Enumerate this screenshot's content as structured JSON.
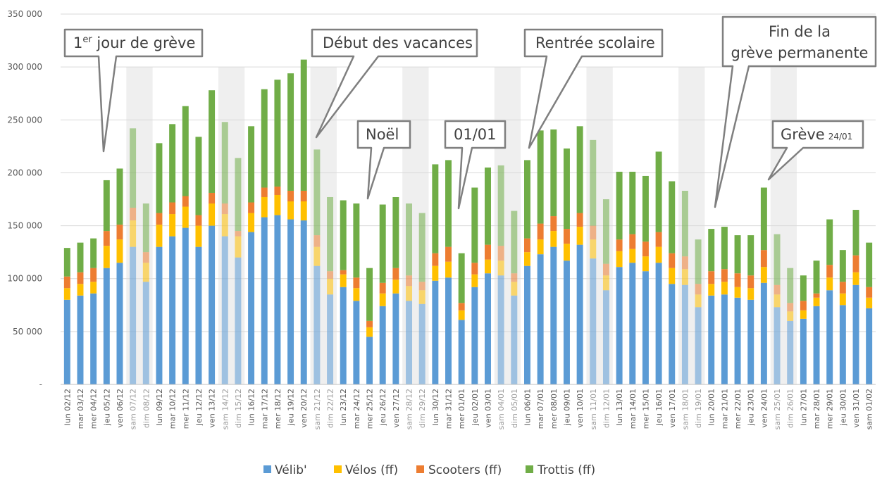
{
  "chart_data": {
    "type": "bar",
    "stacked": true,
    "ylim": [
      0,
      350000
    ],
    "yticks": [
      0,
      50000,
      100000,
      150000,
      200000,
      250000,
      300000,
      350000
    ],
    "ytick_labels": [
      "-",
      "50 000",
      "100 000",
      "150 000",
      "200 000",
      "250 000",
      "300 000",
      "350 000"
    ],
    "grid": true,
    "legend_position": "bottom",
    "categories": [
      "lun 02/12",
      "mar 03/12",
      "mer 04/12",
      "jeu 05/12",
      "ven 06/12",
      "sam 07/12",
      "dim 08/12",
      "lun 09/12",
      "mar 10/12",
      "mer 11/12",
      "jeu 12/12",
      "ven 13/12",
      "sam 14/12",
      "dim 15/12",
      "lun 16/12",
      "mar 17/12",
      "mer 18/12",
      "jeu 19/12",
      "ven 20/12",
      "sam 21/12",
      "dim 22/12",
      "lun 23/12",
      "mar 24/12",
      "mer 25/12",
      "jeu 26/12",
      "ven 27/12",
      "sam 28/12",
      "dim 29/12",
      "lun 30/12",
      "mar 31/12",
      "mer 01/01",
      "jeu 02/01",
      "ven 03/01",
      "sam 04/01",
      "dim 05/01",
      "lun 06/01",
      "mar 07/01",
      "mer 08/01",
      "jeu 09/01",
      "ven 10/01",
      "sam 11/01",
      "dim 12/01",
      "lun 13/01",
      "mar 14/01",
      "mer 15/01",
      "jeu 16/01",
      "ven 17/01",
      "sam 18/01",
      "dim 19/01",
      "lun 20/01",
      "mar 21/01",
      "mer 22/01",
      "jeu 23/01",
      "ven 24/01",
      "sam 25/01",
      "dim 26/01",
      "lun 27/01",
      "mar 28/01",
      "mer 29/01",
      "jeu 30/01",
      "ven 31/01",
      "sam 01/02"
    ],
    "weekend_indices": [
      5,
      6,
      12,
      13,
      19,
      20,
      26,
      27,
      33,
      34,
      40,
      41,
      47,
      48,
      54,
      55
    ],
    "series": [
      {
        "name": "Vélib'",
        "color": "#5b9bd5",
        "values": [
          80000,
          84000,
          86000,
          110000,
          115000,
          130000,
          97000,
          130000,
          140000,
          148000,
          130000,
          150000,
          140000,
          120000,
          144000,
          158000,
          160000,
          156000,
          155000,
          112000,
          85000,
          92000,
          79000,
          45000,
          74000,
          86000,
          79000,
          76000,
          98000,
          101000,
          61000,
          92000,
          105000,
          103000,
          84000,
          112000,
          123000,
          130000,
          117000,
          132000,
          119000,
          89000,
          111000,
          115000,
          107000,
          115000,
          95000,
          94000,
          73000,
          84000,
          85000,
          82000,
          80000,
          96000,
          73000,
          60000,
          62000,
          74000,
          89000,
          75000,
          94000,
          72000
        ]
      },
      {
        "name": "Vélos (ff)",
        "color": "#ffc000",
        "values": [
          11000,
          11000,
          11000,
          21000,
          22000,
          25000,
          18000,
          21000,
          21000,
          20000,
          20000,
          21000,
          21000,
          20000,
          18000,
          19000,
          19000,
          17000,
          18000,
          18000,
          15000,
          12000,
          12000,
          9000,
          12000,
          13000,
          14000,
          13000,
          14000,
          15000,
          9000,
          12000,
          13000,
          14000,
          13000,
          13000,
          14000,
          15000,
          16000,
          17000,
          18000,
          14000,
          15000,
          13000,
          14000,
          15000,
          15000,
          15000,
          12000,
          11000,
          12000,
          10000,
          11000,
          15000,
          12000,
          9000,
          8000,
          8000,
          12000,
          11000,
          12000,
          10000
        ]
      },
      {
        "name": "Scooters (ff)",
        "color": "#ed7d31",
        "values": [
          11000,
          11000,
          13000,
          14000,
          14000,
          12000,
          10000,
          11000,
          11000,
          10000,
          10000,
          10000,
          10000,
          5000,
          10000,
          9000,
          8000,
          10000,
          10000,
          11000,
          7000,
          4000,
          10000,
          6000,
          10000,
          11000,
          10000,
          8000,
          12000,
          14000,
          7000,
          11000,
          14000,
          14000,
          8000,
          13000,
          15000,
          14000,
          14000,
          13000,
          13000,
          11000,
          11000,
          14000,
          14000,
          14000,
          14000,
          12000,
          10000,
          12000,
          12000,
          13000,
          12000,
          16000,
          9000,
          8000,
          9000,
          4000,
          12000,
          11000,
          16000,
          10000
        ]
      },
      {
        "name": "Trottis (ff)",
        "color": "#70ad47",
        "values": [
          27000,
          28000,
          28000,
          48000,
          53000,
          75000,
          46000,
          66000,
          74000,
          85000,
          74000,
          97000,
          77000,
          69000,
          72000,
          93000,
          101000,
          111000,
          124000,
          81000,
          70000,
          66000,
          70000,
          50000,
          74000,
          67000,
          68000,
          65000,
          84000,
          82000,
          47000,
          71000,
          73000,
          76000,
          59000,
          74000,
          88000,
          82000,
          76000,
          82000,
          81000,
          61000,
          64000,
          59000,
          62000,
          76000,
          68000,
          62000,
          42000,
          40000,
          40000,
          36000,
          38000,
          59000,
          48000,
          33000,
          24000,
          31000,
          43000,
          30000,
          43000,
          42000
        ]
      }
    ],
    "annotations": [
      {
        "text_main": "1",
        "text_sup": "er",
        "text_rest": " jour de grève",
        "target": "jeu 05/12"
      },
      {
        "text": "Début des vacances",
        "target": "sam 21/12"
      },
      {
        "text": "Noël",
        "target": "mer 25/12"
      },
      {
        "text": "01/01",
        "target": "mer 01/01"
      },
      {
        "text": "Rentrée scolaire",
        "target": "lun 06/01"
      },
      {
        "text_line1": "Fin de la",
        "text_line2": "grève permanente",
        "target": "lun 20/01"
      },
      {
        "text": "Grève",
        "text_small": "24/01",
        "target": "ven 24/01"
      }
    ]
  },
  "legend": [
    {
      "label": "Vélib'",
      "color": "#5b9bd5"
    },
    {
      "label": "Vélos (ff)",
      "color": "#ffc000"
    },
    {
      "label": "Scooters (ff)",
      "color": "#ed7d31"
    },
    {
      "label": "Trottis (ff)",
      "color": "#70ad47"
    }
  ]
}
